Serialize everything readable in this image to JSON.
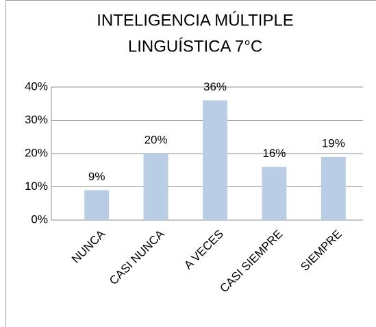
{
  "chart_data": {
    "type": "bar",
    "title": [
      "INTELIGENCIA MÚLTIPLE",
      "LINGUÍSTICA 7°C"
    ],
    "categories": [
      "NUNCA",
      "CASI NUNCA",
      "A VECES",
      "CASI SIEMPRE",
      "SIEMPRE"
    ],
    "values": [
      9,
      20,
      36,
      16,
      19
    ],
    "value_labels": [
      "9%",
      "20%",
      "36%",
      "16%",
      "19%"
    ],
    "color": "#b9cde5",
    "ylim": [
      0,
      40
    ],
    "yticks": [
      {
        "value": 0,
        "label": "0%"
      },
      {
        "value": 10,
        "label": "10%"
      },
      {
        "value": 20,
        "label": "20%"
      },
      {
        "value": 30,
        "label": "30%"
      },
      {
        "value": 40,
        "label": "40%"
      }
    ],
    "grid": true
  }
}
